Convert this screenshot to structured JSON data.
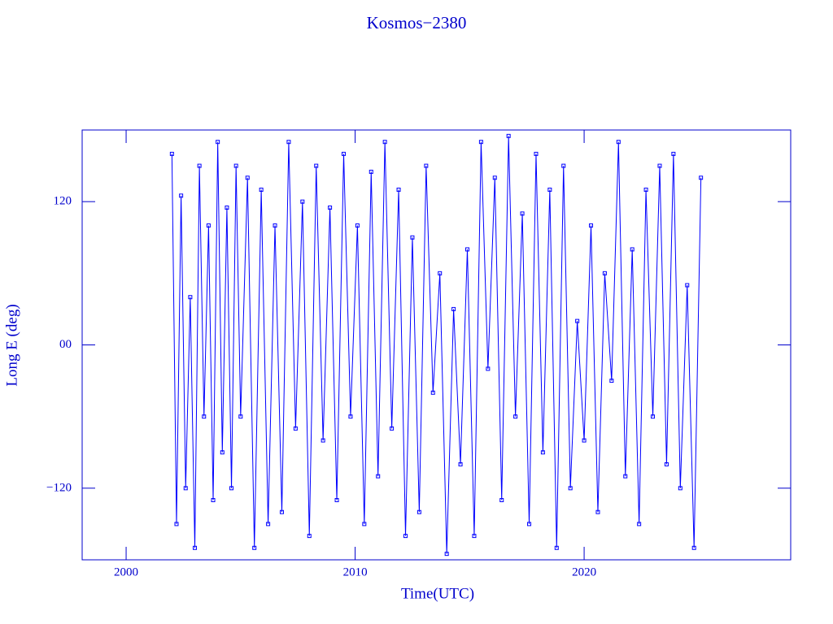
{
  "chart_data": {
    "type": "line",
    "title": "Kosmos−2380",
    "x_label": "Time(UTC)",
    "y_label": "Long E (deg)",
    "xlim": [
      1998.08,
      2029.02
    ],
    "xticks": [
      2000,
      2010,
      2020
    ],
    "ylim": [
      -180,
      180
    ],
    "yticks": [
      {
        "value": -120,
        "label": "−120"
      },
      {
        "value": 0,
        "label": "00"
      },
      120
    ],
    "color": "#0000ff",
    "marker": "square",
    "x": [
      2002.0,
      2002.2,
      2002.4,
      2002.6,
      2002.8,
      2003.0,
      2003.2,
      2003.4,
      2003.6,
      2003.8,
      2004.0,
      2004.2,
      2004.4,
      2004.6,
      2004.8,
      2005.0,
      2005.3,
      2005.6,
      2005.9,
      2006.2,
      2006.5,
      2006.8,
      2007.1,
      2007.4,
      2007.7,
      2008.0,
      2008.3,
      2008.6,
      2008.9,
      2009.2,
      2009.5,
      2009.8,
      2010.1,
      2010.4,
      2010.7,
      2011.0,
      2011.3,
      2011.6,
      2011.9,
      2012.2,
      2012.5,
      2012.8,
      2013.1,
      2013.4,
      2013.7,
      2014.0,
      2014.3,
      2014.6,
      2014.9,
      2015.2,
      2015.5,
      2015.8,
      2016.1,
      2016.4,
      2016.7,
      2017.0,
      2017.3,
      2017.6,
      2017.9,
      2018.2,
      2018.5,
      2018.8,
      2019.1,
      2019.4,
      2019.7,
      2020.0,
      2020.3,
      2020.6,
      2020.9,
      2021.2,
      2021.5,
      2021.8,
      2022.1,
      2022.4,
      2022.7,
      2023.0,
      2023.3,
      2023.6,
      2023.9,
      2024.2,
      2024.5,
      2024.8,
      2025.1
    ],
    "values": [
      160,
      -150,
      125,
      -120,
      40,
      -170,
      150,
      -60,
      100,
      -130,
      170,
      -90,
      115,
      -120,
      150,
      -60,
      140,
      -170,
      130,
      -150,
      100,
      -140,
      170,
      -70,
      120,
      -160,
      150,
      -80,
      115,
      -130,
      160,
      -60,
      100,
      -150,
      145,
      -110,
      170,
      -70,
      130,
      -160,
      90,
      -140,
      150,
      -40,
      60,
      -175,
      30,
      -100,
      80,
      -160,
      170,
      -20,
      140,
      -130,
      175,
      -60,
      110,
      -150,
      160,
      -90,
      130,
      -170,
      150,
      -120,
      20,
      -80,
      100,
      -140,
      60,
      -30,
      170,
      -110,
      80,
      -150,
      130,
      -60,
      150,
      -100,
      160,
      -120,
      50,
      -170,
      140
    ]
  }
}
